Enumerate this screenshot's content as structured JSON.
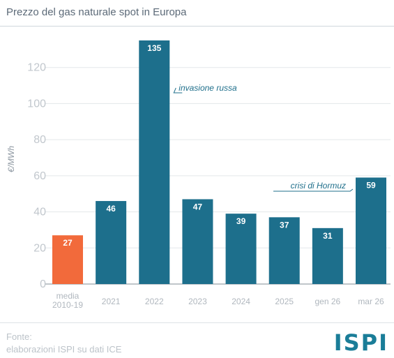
{
  "title": "Prezzo del gas naturale spot in Europa",
  "chart_data": {
    "type": "bar",
    "ylabel": "€/MWh",
    "ylim": [
      0,
      140
    ],
    "yticks": [
      0,
      20,
      40,
      60,
      80,
      100,
      120
    ],
    "grid": true,
    "categories": [
      "media 2010-19",
      "2021",
      "2022",
      "2023",
      "2024",
      "2025",
      "gen 26",
      "mar 26"
    ],
    "values": [
      27,
      46,
      135,
      47,
      39,
      37,
      31,
      59
    ],
    "highlight_color": "#f26a3b",
    "bar_color": "#1d6f8c",
    "highlight_index": 0,
    "annotations": [
      {
        "text": "invasione russa",
        "category": "2022"
      },
      {
        "text": "crisi di Hormuz",
        "category": "mar 26"
      }
    ]
  },
  "source": {
    "label": "Fonte:",
    "text": "elaborazioni ISPI su dati ICE"
  },
  "logo_text": "ISPI"
}
